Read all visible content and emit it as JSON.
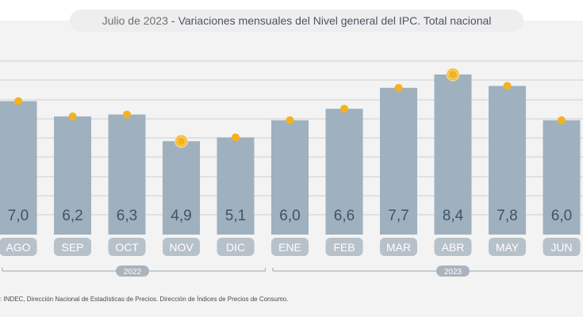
{
  "header": {
    "date": "Julio de 2023",
    "separator": "-",
    "title": "Variaciones mensuales del Nivel general del IPC. Total nacional"
  },
  "chart_data": {
    "type": "bar",
    "title": "Julio de 2023 - Variaciones mensuales del Nivel general del IPC. Total nacional",
    "categories": [
      "AGO",
      "SEP",
      "OCT",
      "NOV",
      "DIC",
      "ENE",
      "FEB",
      "MAR",
      "ABR",
      "MAY",
      "JUN"
    ],
    "values": [
      7.0,
      6.2,
      6.3,
      4.9,
      5.1,
      6.0,
      6.6,
      7.7,
      8.4,
      7.8,
      6.0
    ],
    "value_labels": [
      "7,0",
      "6,2",
      "6,3",
      "4,9",
      "5,1",
      "6,0",
      "6,6",
      "7,7",
      "8,4",
      "7,8",
      "6,0"
    ],
    "highlighted": [
      "NOV",
      "ABR"
    ],
    "year_groups": [
      {
        "label": "2022",
        "from": 0,
        "to": 4
      },
      {
        "label": "2023",
        "from": 5,
        "to": 10
      }
    ],
    "ylim": [
      0,
      9
    ],
    "grid": true,
    "colors": {
      "bar": "#9fb0bf",
      "marker": "#f2b320",
      "label": "#3f5468",
      "tick_bg": "#b7c1ca",
      "year_bg": "#a9b4be",
      "grid": "#cfcfcf"
    }
  },
  "footer": {
    "source": ": INDEC, Dirección Nacional de Estadísticas de Precios. Dirección de Índices de Precios de Consumo."
  }
}
